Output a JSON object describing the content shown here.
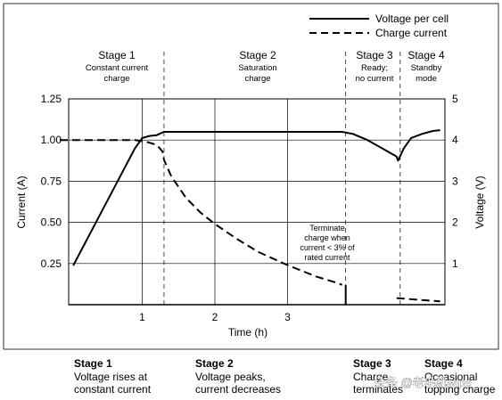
{
  "chart_data": {
    "type": "line",
    "title": "",
    "xlabel": "Time (h)",
    "ylabel": "Current (A)",
    "ylabel_right": "Voltage (V)",
    "xlim": [
      0,
      5.1
    ],
    "ylim": [
      0,
      1.25
    ],
    "ylim_right": [
      0,
      5
    ],
    "x_ticks": [
      {
        "value": 1,
        "label": "1"
      },
      {
        "value": 2,
        "label": "2"
      },
      {
        "value": 3,
        "label": "3"
      }
    ],
    "y_ticks": [
      {
        "value": 0.25,
        "label": "0.25"
      },
      {
        "value": 0.5,
        "label": "0.50"
      },
      {
        "value": 0.75,
        "label": "0.75"
      },
      {
        "value": 1.0,
        "label": "1.00"
      },
      {
        "value": 1.25,
        "label": "1.25"
      }
    ],
    "y_ticks_right": [
      {
        "value": 1,
        "label": "1"
      },
      {
        "value": 2,
        "label": "2"
      },
      {
        "value": 3,
        "label": "3"
      },
      {
        "value": 4,
        "label": "4"
      },
      {
        "value": 5,
        "label": "5"
      }
    ],
    "grid": true,
    "legend_position": "top-right",
    "series": [
      {
        "name": "Voltage per cell",
        "axis": "right",
        "style": "solid",
        "x": [
          0.05,
          0.9,
          1.0,
          1.1,
          1.2,
          1.3,
          1.5,
          2.0,
          3.0,
          3.75,
          3.9,
          4.1,
          4.3,
          4.5,
          4.52,
          4.6,
          4.7,
          4.85,
          5.0,
          5.1
        ],
        "y": [
          0.95,
          3.8,
          4.05,
          4.1,
          4.12,
          4.2,
          4.2,
          4.2,
          4.2,
          4.2,
          4.15,
          4.0,
          3.8,
          3.6,
          3.5,
          3.8,
          4.05,
          4.15,
          4.22,
          4.24
        ]
      },
      {
        "name": "Charge current",
        "axis": "left",
        "style": "dashed",
        "segments": [
          {
            "x": [
              -0.2,
              0.5,
              0.9,
              1.05,
              1.2,
              1.28,
              1.3,
              1.4,
              1.6,
              1.8,
              2.0,
              2.3,
              2.6,
              3.0,
              3.4,
              3.7,
              3.75
            ],
            "y": [
              1.0,
              1.0,
              1.0,
              0.99,
              0.97,
              0.93,
              0.88,
              0.78,
              0.65,
              0.56,
              0.49,
              0.4,
              0.32,
              0.24,
              0.17,
              0.13,
              0.12
            ]
          },
          {
            "x": [
              4.5,
              4.8,
              5.1
            ],
            "y": [
              0.04,
              0.03,
              0.02
            ]
          }
        ]
      }
    ],
    "stage_boundaries": [
      1.3,
      3.8,
      4.55
    ],
    "stages": [
      {
        "title": "Stage 1",
        "lines": [
          "Constant current",
          "charge"
        ]
      },
      {
        "title": "Stage 2",
        "lines": [
          "Saturation",
          "charge"
        ]
      },
      {
        "title": "Stage 3",
        "lines": [
          "Ready;",
          "no current"
        ]
      },
      {
        "title": "Stage 4",
        "lines": [
          "Standby",
          "mode"
        ]
      }
    ],
    "annotation": {
      "lines": [
        "Terminate",
        "charge when",
        "current < 3% of",
        "rated current"
      ]
    }
  },
  "captions": [
    {
      "title": "Stage 1",
      "lines": [
        "Voltage rises at",
        "constant current"
      ]
    },
    {
      "title": "Stage 2",
      "lines": [
        "Voltage peaks,",
        "current decreases"
      ]
    },
    {
      "title": "Stage 3",
      "lines": [
        "Charge",
        "terminates"
      ]
    },
    {
      "title": "Stage 4",
      "lines": [
        "Occasional",
        "topping charge"
      ]
    }
  ],
  "watermark": "头条 @老毛机wipe"
}
